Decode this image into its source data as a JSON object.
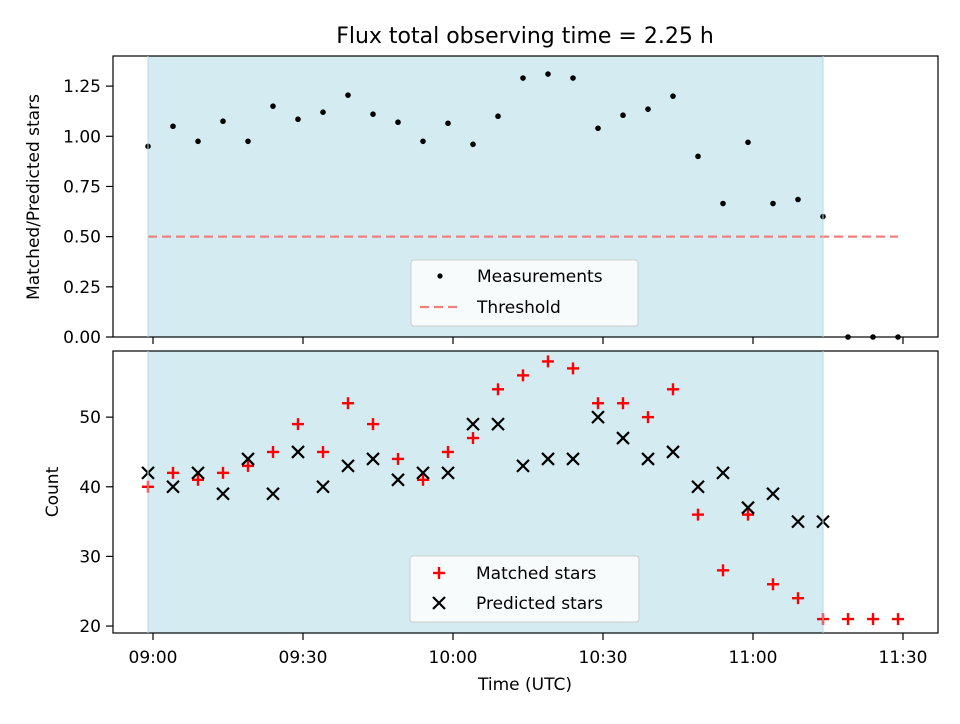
{
  "title": "Flux total observing time = 2.25 h",
  "colors": {
    "shade": "#d4ebf1",
    "measure": "#000000",
    "threshold": "#f07f7f",
    "matched": "#ff0000",
    "predicted": "#000000"
  },
  "chart_data": [
    {
      "type": "scatter",
      "ylabel": "Matched/Predicted stars",
      "ylim": [
        0,
        1.4
      ],
      "xlim_minutes": [
        -8,
        157
      ],
      "x_time_labels": [
        "09:00",
        "09:30",
        "10:00",
        "10:30",
        "11:00",
        "11:30"
      ],
      "yticks": [
        0,
        0.25,
        0.5,
        0.75,
        1.0,
        1.25
      ],
      "ytick_labels": [
        "0.00",
        "0.25",
        "0.50",
        "0.75",
        "1.00",
        "1.25"
      ],
      "shaded_span": [
        "08:59",
        "11:14"
      ],
      "threshold": {
        "name": "Threshold",
        "y": 0.5,
        "x_range": [
          "08:59",
          "11:29"
        ]
      },
      "legend": {
        "placement": "lower center",
        "entries": [
          "Measurements",
          "Threshold"
        ]
      },
      "series": [
        {
          "name": "Measurements",
          "x": [
            "08:59",
            "09:04",
            "09:09",
            "09:14",
            "09:19",
            "09:24",
            "09:29",
            "09:34",
            "09:39",
            "09:44",
            "09:49",
            "09:54",
            "09:59",
            "10:04",
            "10:09",
            "10:14",
            "10:19",
            "10:24",
            "10:29",
            "10:34",
            "10:39",
            "10:44",
            "10:49",
            "10:54",
            "10:59",
            "11:04",
            "11:09",
            "11:14",
            "11:19",
            "11:24",
            "11:29"
          ],
          "y": [
            0.95,
            1.05,
            0.975,
            1.075,
            0.975,
            1.15,
            1.085,
            1.12,
            1.205,
            1.11,
            1.07,
            0.975,
            1.065,
            0.96,
            1.1,
            1.29,
            1.31,
            1.29,
            1.04,
            1.105,
            1.135,
            1.2,
            0.9,
            0.665,
            0.97,
            0.665,
            0.685,
            0.6,
            0.0,
            0.0,
            0.0
          ]
        }
      ]
    },
    {
      "type": "scatter",
      "xlabel": "Time (UTC)",
      "ylabel": "Count",
      "ylim": [
        19,
        59.5
      ],
      "xlim_minutes": [
        -8,
        157
      ],
      "x_time_labels": [
        "09:00",
        "09:30",
        "10:00",
        "10:30",
        "11:00",
        "11:30"
      ],
      "yticks": [
        20,
        30,
        40,
        50
      ],
      "ytick_labels": [
        "20",
        "30",
        "40",
        "50"
      ],
      "shaded_span": [
        "08:59",
        "11:14"
      ],
      "legend": {
        "placement": "lower center",
        "entries": [
          "Matched stars",
          "Predicted stars"
        ]
      },
      "series": [
        {
          "name": "Matched stars",
          "x": [
            "08:59",
            "09:04",
            "09:09",
            "09:14",
            "09:19",
            "09:24",
            "09:29",
            "09:34",
            "09:39",
            "09:44",
            "09:49",
            "09:54",
            "09:59",
            "10:04",
            "10:09",
            "10:14",
            "10:19",
            "10:24",
            "10:29",
            "10:34",
            "10:39",
            "10:44",
            "10:49",
            "10:54",
            "10:59",
            "11:04",
            "11:09",
            "11:14",
            "11:19",
            "11:24",
            "11:29"
          ],
          "y": [
            40,
            42,
            41,
            42,
            43,
            45,
            49,
            45,
            52,
            49,
            44,
            41,
            45,
            47,
            54,
            56,
            58,
            57,
            52,
            52,
            50,
            54,
            36,
            28,
            36,
            26,
            24,
            21,
            21,
            21,
            21
          ]
        },
        {
          "name": "Predicted stars",
          "x": [
            "08:59",
            "09:04",
            "09:09",
            "09:14",
            "09:19",
            "09:24",
            "09:29",
            "09:34",
            "09:39",
            "09:44",
            "09:49",
            "09:54",
            "09:59",
            "10:04",
            "10:09",
            "10:14",
            "10:19",
            "10:24",
            "10:29",
            "10:34",
            "10:39",
            "10:44",
            "10:49",
            "10:54",
            "10:59",
            "11:04",
            "11:09",
            "11:14"
          ],
          "y": [
            42,
            40,
            42,
            39,
            44,
            39,
            45,
            40,
            43,
            44,
            41,
            42,
            42,
            49,
            49,
            43,
            44,
            44,
            50,
            47,
            44,
            45,
            40,
            42,
            37,
            39,
            35,
            35
          ]
        }
      ]
    }
  ]
}
